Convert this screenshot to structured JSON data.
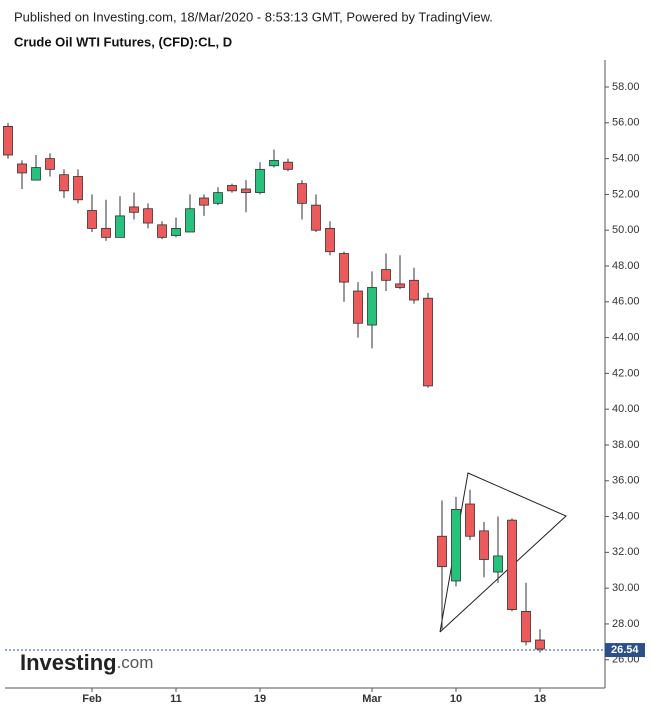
{
  "chart_data": {
    "type": "candlestick",
    "subtitle": "Published on Investing.com, 18/Mar/2020 - 8:53:13 GMT, Powered by TradingView.",
    "title": "Crude Oil WTI Futures, (CFD):CL, D",
    "logo": "Investing",
    "logo_suffix": ".com",
    "categories": [
      null,
      null,
      null,
      null,
      null,
      null,
      "Feb",
      null,
      null,
      null,
      null,
      null,
      "11",
      null,
      null,
      null,
      null,
      null,
      "19",
      null,
      null,
      null,
      null,
      null,
      null,
      null,
      "Mar",
      null,
      null,
      null,
      null,
      null,
      "10",
      null,
      null,
      null,
      null,
      null,
      "18"
    ],
    "open": [
      55.8,
      53.7,
      52.8,
      54.0,
      53.1,
      53.0,
      51.1,
      50.1,
      49.6,
      51.3,
      51.2,
      50.3,
      49.7,
      49.9,
      51.8,
      51.5,
      52.5,
      52.3,
      52.1,
      53.6,
      53.8,
      52.6,
      51.4,
      50.1,
      48.7,
      46.6,
      44.7,
      47.8,
      47.0,
      47.2,
      46.2,
      32.9,
      30.4,
      34.7,
      33.2,
      30.9,
      33.8,
      28.7,
      27.1
    ],
    "high": [
      56.0,
      53.9,
      54.2,
      54.3,
      53.4,
      53.4,
      52.0,
      51.7,
      51.9,
      52.1,
      51.5,
      50.5,
      50.7,
      52.0,
      52.0,
      52.4,
      52.6,
      52.8,
      53.8,
      54.5,
      54.0,
      52.8,
      52.0,
      50.5,
      48.8,
      47.1,
      47.7,
      48.7,
      48.6,
      47.9,
      46.5,
      34.9,
      35.1,
      35.5,
      33.7,
      34.0,
      33.9,
      30.3,
      27.7
    ],
    "low": [
      54.0,
      52.3,
      52.8,
      53.0,
      51.8,
      51.5,
      49.9,
      49.4,
      49.6,
      50.6,
      50.1,
      49.5,
      49.6,
      49.9,
      50.8,
      51.4,
      52.1,
      51.0,
      52.0,
      53.5,
      53.3,
      50.6,
      49.9,
      48.6,
      46.0,
      44.0,
      43.4,
      46.6,
      46.7,
      45.9,
      41.2,
      27.7,
      30.1,
      32.7,
      30.6,
      30.3,
      28.7,
      26.8,
      26.4
    ],
    "close": [
      54.2,
      53.2,
      53.5,
      53.4,
      52.2,
      51.7,
      50.1,
      49.6,
      50.8,
      51.0,
      50.4,
      49.6,
      50.1,
      51.2,
      51.4,
      52.1,
      52.2,
      52.1,
      53.4,
      53.9,
      53.4,
      51.5,
      50.0,
      48.8,
      47.1,
      44.8,
      46.8,
      47.2,
      46.8,
      46.1,
      41.3,
      31.2,
      34.4,
      32.9,
      31.6,
      31.8,
      28.8,
      27.0,
      26.6
    ],
    "up_color": "#22c47c",
    "down_color": "#f0595a",
    "last_price": 26.54,
    "ylim": [
      24.42,
      59.51
    ],
    "yticks": [
      {
        "value": 26,
        "label": "26.00"
      },
      {
        "value": 28,
        "label": "28.00"
      },
      {
        "value": 30,
        "label": "30.00"
      },
      {
        "value": 32,
        "label": "32.00"
      },
      {
        "value": 34,
        "label": "34.00"
      },
      {
        "value": 36,
        "label": "36.00"
      },
      {
        "value": 38,
        "label": "38.00"
      },
      {
        "value": 40,
        "label": "40.00"
      },
      {
        "value": 42,
        "label": "42.00"
      },
      {
        "value": 44,
        "label": "44.00"
      },
      {
        "value": 46,
        "label": "46.00"
      },
      {
        "value": 48,
        "label": "48.00"
      },
      {
        "value": 50,
        "label": "50.00"
      },
      {
        "value": 52,
        "label": "52.00"
      },
      {
        "value": 54,
        "label": "54.00"
      },
      {
        "value": 56,
        "label": "56.00"
      },
      {
        "value": 58,
        "label": "58.00"
      }
    ],
    "grid": false
  }
}
